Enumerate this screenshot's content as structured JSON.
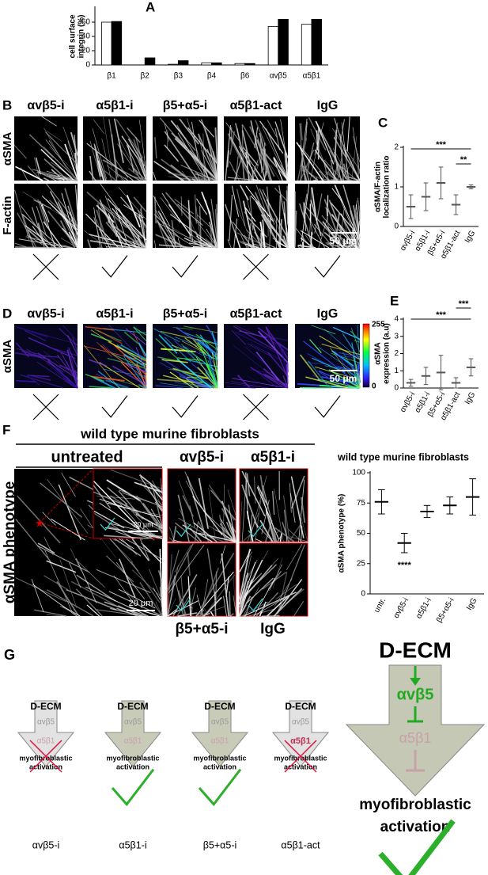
{
  "chart_data": [
    {
      "type": "bar",
      "label": "A",
      "y_label": [
        "cell surface",
        "integrin (%)"
      ],
      "categories": [
        "β1",
        "β2",
        "β3",
        "β4",
        "β6",
        "αvβ5",
        "α5β1"
      ],
      "series": [
        {
          "color": "#ffffff",
          "values": [
            60,
            0,
            1,
            3,
            2,
            54,
            57
          ]
        },
        {
          "color": "#000000",
          "values": [
            61,
            10,
            6,
            3,
            2,
            64,
            64
          ]
        }
      ],
      "ylim": [
        0,
        80
      ],
      "yticks": [
        0,
        20,
        40,
        60
      ]
    },
    {
      "type": "dot",
      "label": "C",
      "y_label": [
        "αSMA/F-actin",
        "localization ratio"
      ],
      "categories": [
        "αvβ5-i",
        "α5β1-i",
        "β5+α5-i",
        "α5β1-act",
        "IgG"
      ],
      "values": [
        0.5,
        0.75,
        1.1,
        0.55,
        1.0
      ],
      "errors": [
        0.3,
        0.35,
        0.4,
        0.25,
        0.05
      ],
      "color": "#555555",
      "ylim": [
        0,
        2
      ],
      "yticks": [
        0,
        1,
        2
      ],
      "annotations": [
        "***",
        "**"
      ]
    },
    {
      "type": "dot",
      "label": "E",
      "y_label": [
        "αSMA",
        "expression (a.u)"
      ],
      "categories": [
        "αvβ5-i",
        "α5β1-i",
        "β5+α5-i",
        "α5β1-act",
        "IgG"
      ],
      "values": [
        0.3,
        0.7,
        0.9,
        0.3,
        1.2
      ],
      "errors": [
        0.2,
        0.5,
        1.0,
        0.3,
        0.5
      ],
      "color": "#555555",
      "ylim": [
        0,
        4
      ],
      "yticks": [
        0,
        1,
        2,
        3,
        4
      ],
      "annotations": [
        "***",
        "***"
      ]
    },
    {
      "type": "dot",
      "title": "wild type murine fibroblasts",
      "y_label": [
        "αSMA phenotype (%)"
      ],
      "categories": [
        "untr.",
        "αvβ5-i",
        "α5β1-i",
        "β5+α5-i",
        "IgG"
      ],
      "values": [
        76,
        42,
        68,
        73,
        80
      ],
      "errors": [
        10,
        8,
        5,
        7,
        15
      ],
      "color": "#000000",
      "ylim": [
        0,
        100
      ],
      "yticks": [
        0,
        25,
        50,
        75,
        100
      ],
      "annotations": [
        "****"
      ]
    }
  ],
  "panels": {
    "B": {
      "label": "B",
      "columns": [
        "αvβ5-i",
        "α5β1-i",
        "β5+α5-i",
        "α5β1-act",
        "IgG"
      ],
      "rows": [
        "αSMA",
        "F-actin"
      ],
      "scale": "50 μm"
    },
    "D": {
      "label": "D",
      "columns": [
        "αvβ5-i",
        "α5β1-i",
        "β5+α5-i",
        "α5β1-act",
        "IgG"
      ],
      "row": "αSMA",
      "scale": "50 μm",
      "colorbar": [
        255,
        0
      ]
    },
    "F": {
      "label": "F",
      "header": "wild type murine fibroblasts",
      "untreated": "untreated",
      "images": [
        "αvβ5-i",
        "α5β1-i",
        "β5+α5-i",
        "IgG"
      ],
      "row": "αSMA phenotype",
      "scale": "20 μm",
      "inset_scale": "20 μm"
    },
    "G": {
      "label": "G",
      "arrows": [
        {
          "top": "D-ECM",
          "integrins": [
            "αvβ5",
            "α5β1"
          ],
          "bottom": [
            "myofibroblastic",
            "activation"
          ],
          "caption": "αvβ5-i"
        },
        {
          "top": "D-ECM",
          "integrins": [
            "αvβ5",
            "α5β1"
          ],
          "bottom": [
            "myofibroblastic",
            "activation"
          ],
          "caption": "α5β1-i"
        },
        {
          "top": "D-ECM",
          "integrins": [
            "αvβ5",
            "α5β1"
          ],
          "bottom": [
            "myofibroblastic",
            "activation"
          ],
          "caption": "β5+α5-i"
        },
        {
          "top": "D-ECM",
          "integrins": [
            "αvβ5",
            "α5β1"
          ],
          "bottom": [
            "myofibroblastic",
            "activation"
          ],
          "caption": "α5β1-act"
        }
      ],
      "summary": {
        "top": "D-ECM",
        "integrins": [
          "αvβ5",
          "α5β1"
        ],
        "bottom": [
          "myofibroblastic",
          "activation"
        ]
      }
    }
  }
}
